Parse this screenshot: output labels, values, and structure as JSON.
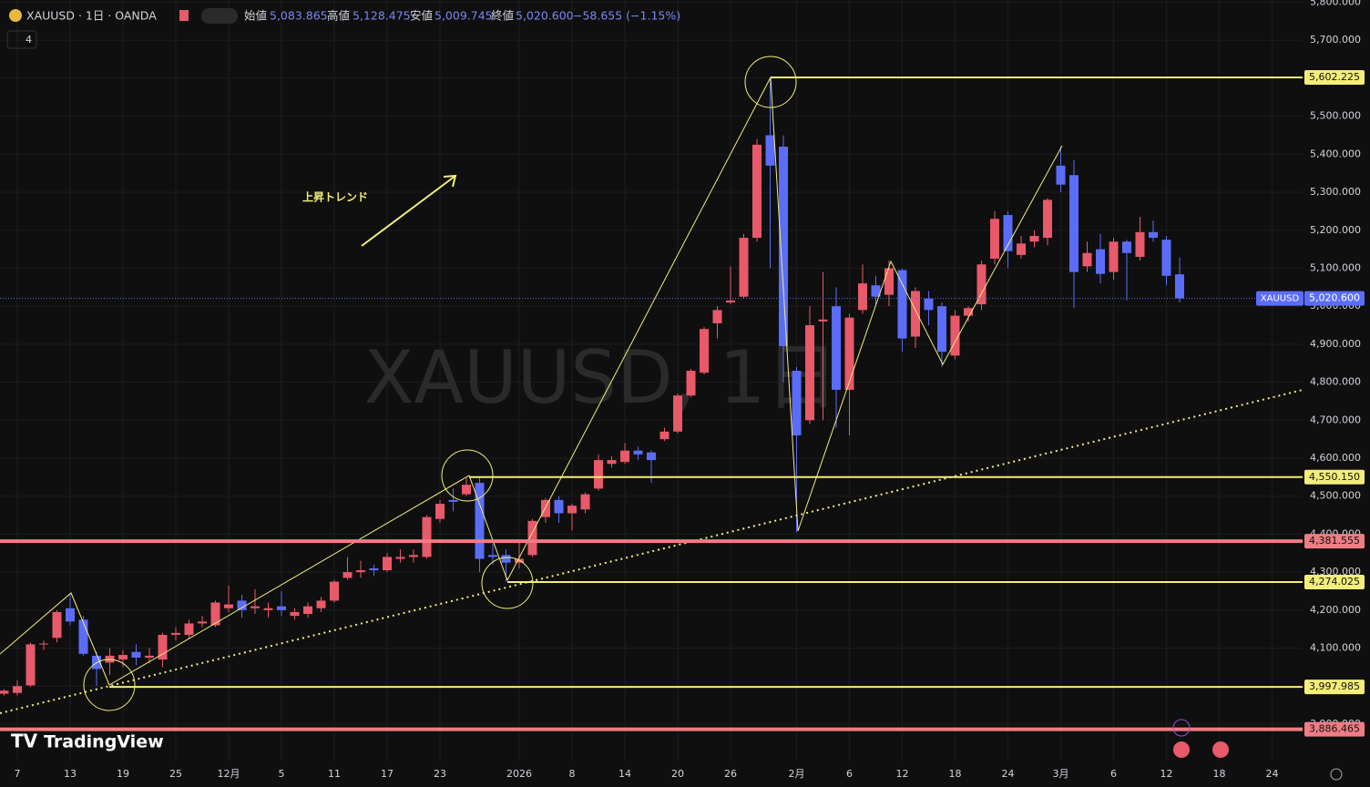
{
  "header": {
    "symbol": "XAUUSD · 1日 · OANDA",
    "open_label": "始値",
    "open": "5,083.865",
    "high_label": "高値",
    "high": "5,128.475",
    "low_label": "安値",
    "low": "5,009.745",
    "close_label": "終値",
    "close": "5,020.600",
    "change": "−58.655 (−1.15%)",
    "indicator_count": "4",
    "watermark": "XAUUSD, 1日",
    "logo": "TradingView"
  },
  "chart_data": {
    "type": "candlestick",
    "symbol_tag": "XAUUSD",
    "up_color": "#e8596a",
    "down_color": "#5b6df8",
    "grid": true,
    "annotation": "上昇トレンド",
    "categories": [
      null,
      "7",
      null,
      null,
      null,
      "13",
      null,
      null,
      null,
      "19",
      null,
      null,
      null,
      "25",
      null,
      null,
      null,
      "12月",
      null,
      null,
      null,
      "5",
      null,
      null,
      null,
      "11",
      null,
      null,
      null,
      "17",
      null,
      null,
      null,
      "23",
      null,
      null,
      null,
      null,
      null,
      "2026",
      null,
      null,
      null,
      "8",
      null,
      null,
      null,
      "14",
      null,
      null,
      null,
      "20",
      null,
      null,
      null,
      "26",
      null,
      null,
      null,
      null,
      "2月",
      null,
      null,
      null,
      "6",
      null,
      null,
      null,
      "12",
      null,
      null,
      null,
      "18",
      null,
      null,
      null,
      "24",
      null,
      null,
      null,
      "3月",
      null,
      null,
      null,
      "6",
      null,
      null,
      null,
      "12",
      null,
      null,
      null,
      "18",
      null,
      null,
      null,
      "24"
    ],
    "open": [
      3980,
      3982,
      4002,
      4110,
      4127,
      4205,
      4175,
      4080,
      4062,
      4070,
      4090,
      4075,
      4070,
      4135,
      4135,
      4165,
      4160,
      4205,
      4225,
      4205,
      4200,
      4210,
      4185,
      4190,
      4205,
      4225,
      4285,
      4300,
      4310,
      4305,
      4335,
      4340,
      4340,
      4440,
      4490,
      4505,
      4535,
      4345,
      4345,
      4325,
      4345,
      4445,
      4490,
      4455,
      4465,
      4520,
      4585,
      4590,
      4620,
      4615,
      4650,
      4670,
      4765,
      4825,
      4955,
      5010,
      5025,
      5180,
      5450,
      5420,
      4830,
      4700,
      4960,
      5000,
      4780,
      4990,
      5055,
      5030,
      5095,
      4920,
      5020,
      5000,
      4870,
      4975,
      5005,
      5125,
      5240,
      5135,
      5170,
      5180,
      5370,
      5345,
      5105,
      5150,
      5090,
      5170,
      5130,
      5195,
      5175,
      5083.865,
      null,
      null,
      null,
      null,
      null,
      null,
      null
    ],
    "high": [
      3992,
      4015,
      4115,
      4120,
      4200,
      4245,
      4185,
      4090,
      4100,
      4095,
      4110,
      4100,
      4140,
      4155,
      4175,
      4185,
      4225,
      4265,
      4240,
      4255,
      4220,
      4250,
      4205,
      4220,
      4235,
      4280,
      4340,
      4330,
      4320,
      4350,
      4360,
      4360,
      4450,
      4490,
      4520,
      4550,
      4550,
      4375,
      4360,
      4385,
      4440,
      4495,
      4500,
      4480,
      4510,
      4610,
      4605,
      4640,
      4630,
      4620,
      4680,
      4770,
      4835,
      4945,
      5000,
      5105,
      5190,
      5440,
      5600,
      5450,
      4840,
      5000,
      5090,
      5050,
      4980,
      5110,
      5080,
      5120,
      5100,
      5050,
      5040,
      5010,
      4990,
      5000,
      5120,
      5250,
      5250,
      5185,
      5200,
      5285,
      5420,
      5385,
      5170,
      5190,
      5180,
      5175,
      5235,
      5225,
      5185,
      5128.475,
      null,
      null,
      null,
      null,
      null,
      null,
      null
    ],
    "low": [
      3975,
      3975,
      3998,
      4095,
      4115,
      4160,
      4080,
      4000,
      4030,
      4050,
      4055,
      4060,
      4050,
      4120,
      4125,
      4155,
      4155,
      4195,
      4180,
      4190,
      4180,
      4185,
      4175,
      4180,
      4195,
      4220,
      4280,
      4285,
      4290,
      4300,
      4325,
      4325,
      4335,
      4430,
      4460,
      4500,
      4300,
      4320,
      4275,
      4310,
      4340,
      4430,
      4430,
      4410,
      4455,
      4515,
      4575,
      4585,
      4595,
      4535,
      4645,
      4665,
      4760,
      4820,
      4915,
      5005,
      5020,
      5170,
      5100,
      4800,
      4405,
      4690,
      4700,
      4680,
      4660,
      4980,
      5000,
      5000,
      4880,
      4890,
      4950,
      4840,
      4860,
      4960,
      4990,
      5110,
      5100,
      5125,
      5155,
      5160,
      5300,
      4995,
      5090,
      5060,
      5070,
      5015,
      5120,
      5170,
      5055,
      5009.745,
      null,
      null,
      null,
      null,
      null,
      null,
      null
    ],
    "close": [
      3988,
      4000,
      4110,
      4112,
      4195,
      4170,
      4085,
      4045,
      4080,
      4082,
      4075,
      4080,
      4135,
      4140,
      4165,
      4170,
      4220,
      4215,
      4200,
      4210,
      4205,
      4200,
      4195,
      4210,
      4225,
      4275,
      4300,
      4305,
      4305,
      4340,
      4340,
      4345,
      4445,
      4480,
      4485,
      4530,
      4335,
      4340,
      4325,
      4335,
      4435,
      4490,
      4455,
      4475,
      4505,
      4595,
      4595,
      4620,
      4610,
      4595,
      4670,
      4765,
      4830,
      4940,
      4990,
      5015,
      5180,
      5425,
      5370,
      4895,
      4660,
      4950,
      4965,
      4780,
      4970,
      5060,
      5025,
      5100,
      4915,
      5040,
      4990,
      4880,
      4975,
      4995,
      5110,
      5230,
      5145,
      5165,
      5185,
      5280,
      5320,
      5090,
      5140,
      5085,
      5170,
      5140,
      5195,
      5180,
      5080,
      5020.6,
      null,
      null,
      null,
      null,
      null,
      null,
      null
    ],
    "last_price": {
      "value": 5020.6,
      "label": "5,020.600"
    },
    "hlines": [
      {
        "value": 5602.225,
        "label": "5,602.225",
        "color": "#f3ee7a"
      },
      {
        "value": 4550.15,
        "label": "4,550.150",
        "color": "#f3ee7a"
      },
      {
        "value": 4381.555,
        "label": "4,381.555",
        "color": "#f07c84"
      },
      {
        "value": 4274.025,
        "label": "4,274.025",
        "color": "#f3ee7a"
      },
      {
        "value": 3997.985,
        "label": "3,997.985",
        "color": "#f3ee7a"
      },
      {
        "value": 3886.465,
        "label": "3,886.465",
        "color": "#f07c84"
      }
    ],
    "ylim": [
      3804,
      5806
    ],
    "yticks": [
      {
        "value": 5800,
        "label": "5,800.000"
      },
      {
        "value": 5700,
        "label": "5,700.000"
      },
      {
        "value": 5600,
        "label": "5,600.000"
      },
      {
        "value": 5500,
        "label": "5,500.000"
      },
      {
        "value": 5400,
        "label": "5,400.000"
      },
      {
        "value": 5300,
        "label": "5,300.000"
      },
      {
        "value": 5200,
        "label": "5,200.000"
      },
      {
        "value": 5100,
        "label": "5,100.000"
      },
      {
        "value": 5000,
        "label": "5,000.000"
      },
      {
        "value": 4900,
        "label": "4,900.000"
      },
      {
        "value": 4800,
        "label": "4,800.000"
      },
      {
        "value": 4700,
        "label": "4,700.000"
      },
      {
        "value": 4600,
        "label": "4,600.000"
      },
      {
        "value": 4500,
        "label": "4,500.000"
      },
      {
        "value": 4400,
        "label": "4,400.000"
      },
      {
        "value": 4300,
        "label": "4,300.000"
      },
      {
        "value": 4200,
        "label": "4,200.000"
      },
      {
        "value": 4100,
        "label": "4,100.000"
      },
      {
        "value": 4000,
        "label": "4,000.000"
      },
      {
        "value": 3900,
        "label": "3,900.000"
      }
    ]
  }
}
